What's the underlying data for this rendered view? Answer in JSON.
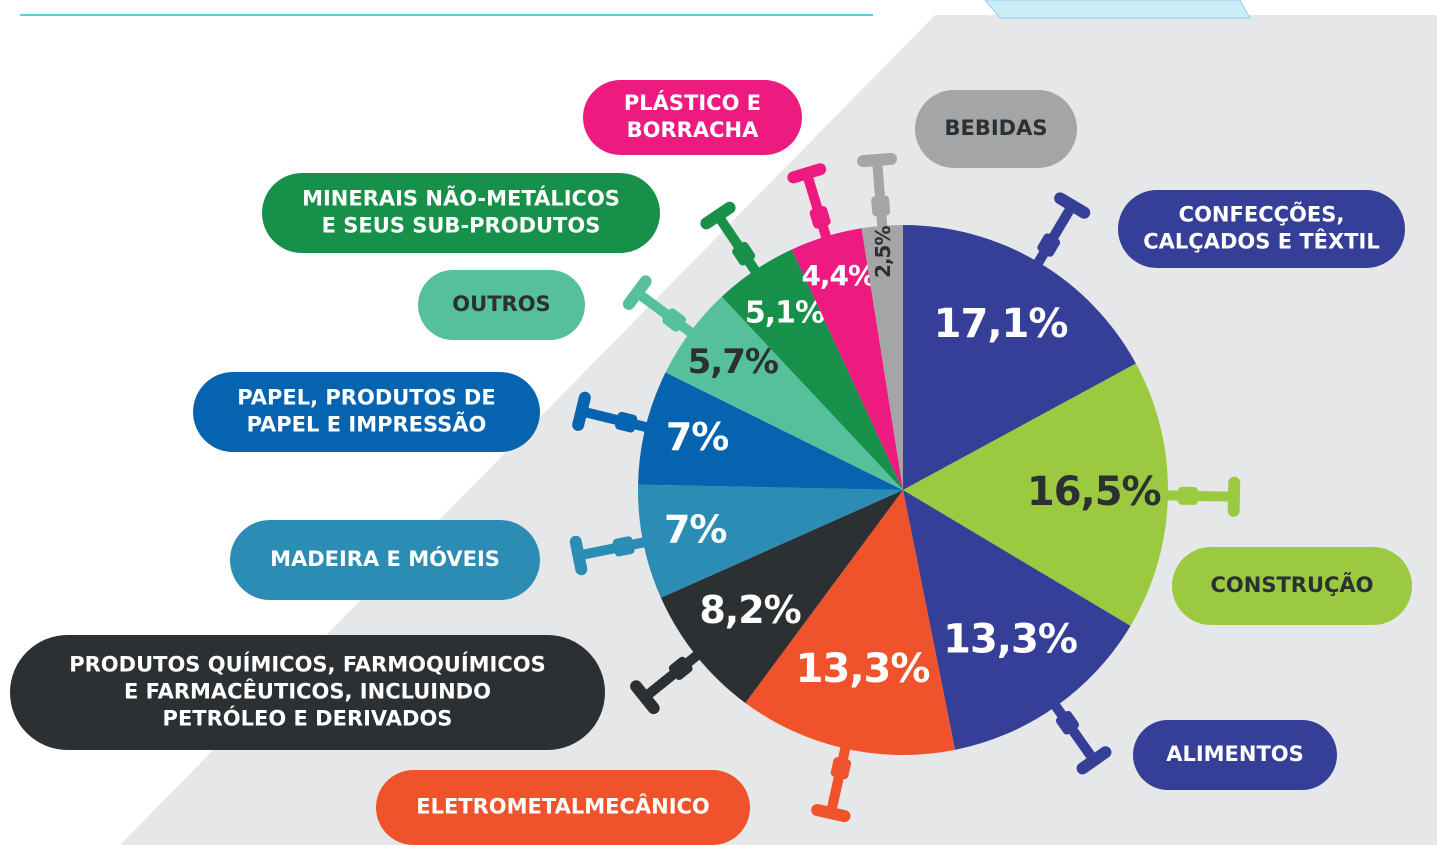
{
  "chart_data": {
    "type": "pie",
    "categories": [
      [
        "CONFECÇÕES,",
        "CALÇADOS E TÊXTIL"
      ],
      [
        "CONSTRUÇÃO"
      ],
      [
        "ALIMENTOS"
      ],
      [
        "ELETROMETALMECÂNICO"
      ],
      [
        "PRODUTOS QUÍMICOS, FARMOQUÍMICOS",
        "E FARMACÊUTICOS, INCLUINDO",
        "PETRÓLEO E DERIVADOS"
      ],
      [
        "MADEIRA E MÓVEIS"
      ],
      [
        "PAPEL, PRODUTOS DE",
        "PAPEL E IMPRESSÃO"
      ],
      [
        "OUTROS"
      ],
      [
        "MINERAIS NÃO-METÁLICOS",
        "E SEUS SUB-PRODUTOS"
      ],
      [
        "PLÁSTICO E",
        "BORRACHA"
      ],
      [
        "BEBIDAS"
      ]
    ],
    "values": [
      17.1,
      16.5,
      13.3,
      13.3,
      8.2,
      7,
      7,
      5.7,
      5.1,
      4.4,
      2.5
    ],
    "value_labels": [
      "17,1%",
      "16,5%",
      "13,3%",
      "13,3%",
      "8,2%",
      "7%",
      "7%",
      "5,7%",
      "5,1%",
      "4,4%",
      "2,5%"
    ],
    "colors": [
      "#363f98",
      "#9bc93f",
      "#363f98",
      "#f0522c",
      "#2d3033",
      "#2b8cb4",
      "#0563b0",
      "#55c09b",
      "#17914a",
      "#ed1a7f",
      "#a3a5a6"
    ]
  }
}
